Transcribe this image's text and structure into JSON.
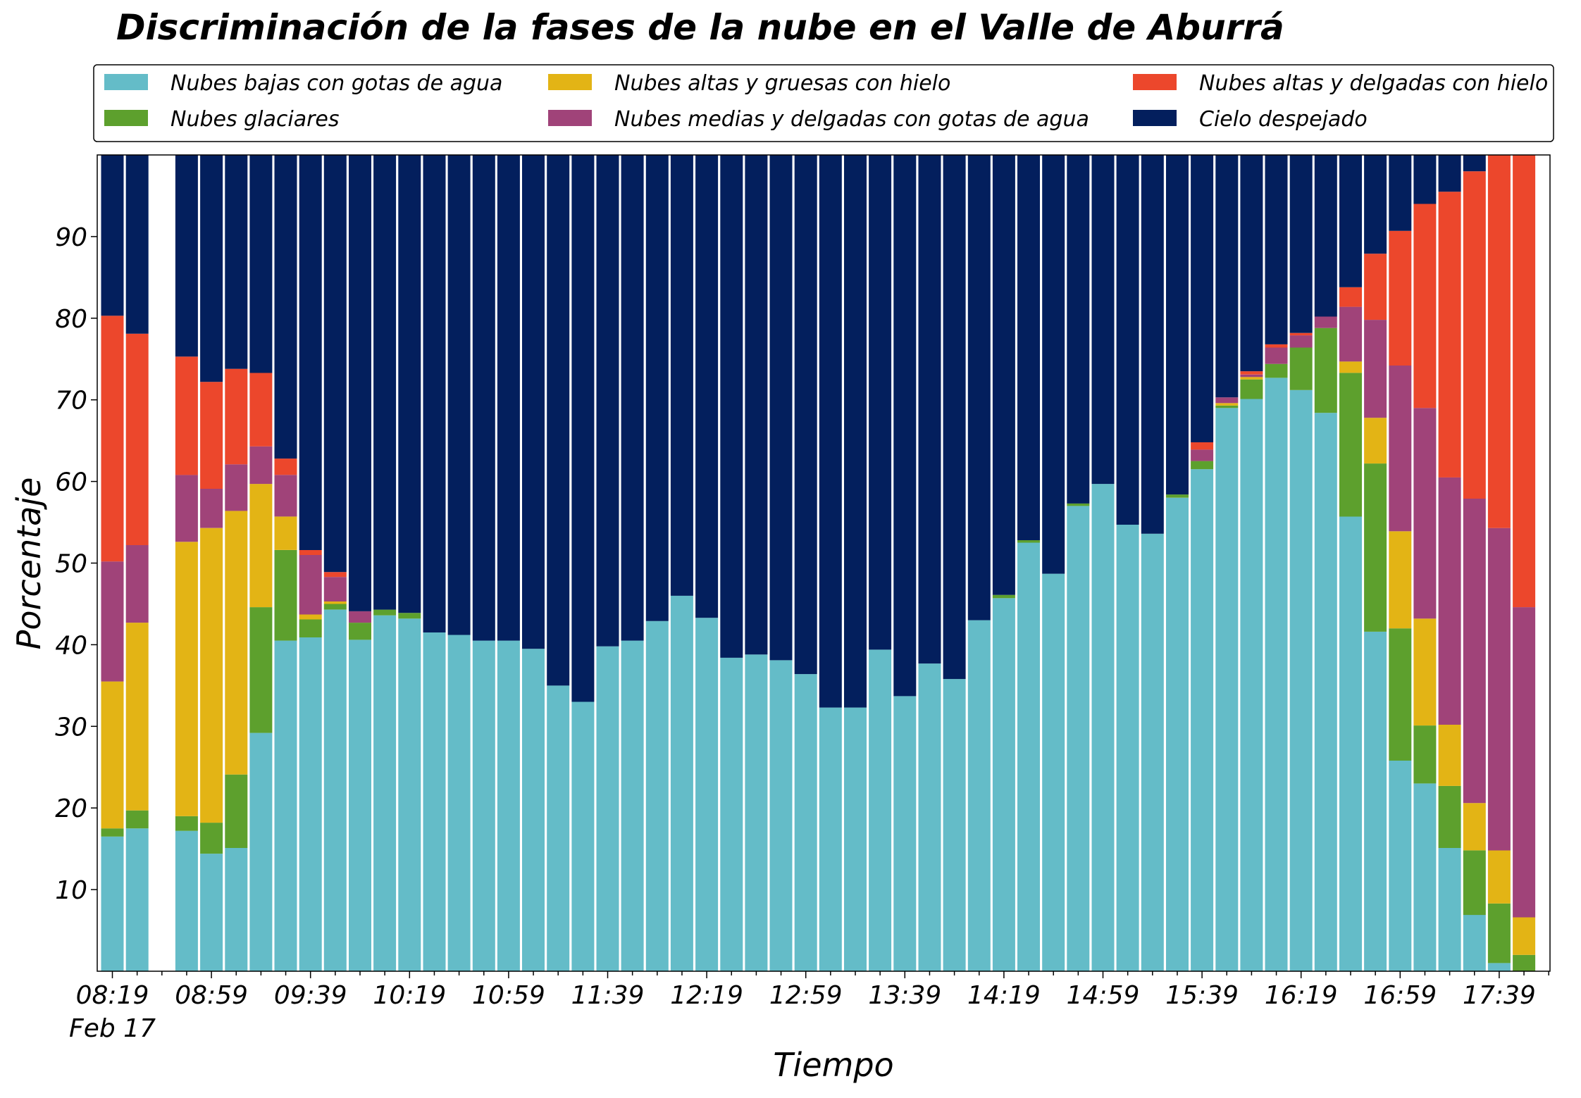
{
  "chart_data": {
    "type": "bar",
    "stacked": true,
    "title": "Discriminación de la fases de la nube en el Valle de Aburrá",
    "xlabel": "Tiempo",
    "ylabel": "Porcentaje",
    "ylim": [
      0,
      100
    ],
    "yticks": [
      "10",
      "20",
      "30",
      "40",
      "50",
      "60",
      "70",
      "80",
      "90"
    ],
    "xticks": [
      "08:19",
      "08:59",
      "09:39",
      "10:19",
      "10:59",
      "11:39",
      "12:19",
      "12:59",
      "13:39",
      "14:19",
      "14:59",
      "15:39",
      "16:19",
      "16:59",
      "17:39"
    ],
    "xtick_sublabel": "Feb 17",
    "grid": false,
    "legend_position": "top",
    "categories": [
      "08:19",
      "08:29",
      "08:39",
      "08:49",
      "08:59",
      "09:09",
      "09:19",
      "09:29",
      "09:39",
      "09:49",
      "09:59",
      "10:09",
      "10:19",
      "10:29",
      "10:39",
      "10:49",
      "10:59",
      "11:09",
      "11:19",
      "11:29",
      "11:39",
      "11:49",
      "11:59",
      "12:09",
      "12:19",
      "12:29",
      "12:39",
      "12:49",
      "12:59",
      "13:09",
      "13:19",
      "13:29",
      "13:39",
      "13:49",
      "13:59",
      "14:09",
      "14:19",
      "14:29",
      "14:39",
      "14:49",
      "14:59",
      "15:09",
      "15:19",
      "15:29",
      "15:39",
      "15:49",
      "15:59",
      "16:09",
      "16:19",
      "16:29",
      "16:39",
      "16:49",
      "16:59",
      "17:09",
      "17:19",
      "17:29",
      "17:39",
      "17:49",
      "17:59"
    ],
    "series": [
      {
        "name": "Nubes bajas con gotas de agua",
        "color": "#64BCC8",
        "values": [
          16.5,
          17.5,
          null,
          17.2,
          14.4,
          15.1,
          29.2,
          40.5,
          40.9,
          44.3,
          40.6,
          43.6,
          43.2,
          41.5,
          41.2,
          40.5,
          40.5,
          39.5,
          35.0,
          33.0,
          39.8,
          40.5,
          42.9,
          46.0,
          43.3,
          38.4,
          38.8,
          38.1,
          36.4,
          32.3,
          32.3,
          39.4,
          33.7,
          37.7,
          35.8,
          43.0,
          45.7,
          52.5,
          48.7,
          57.0,
          59.7,
          54.7,
          53.6,
          58.0,
          61.5,
          69.0,
          70.1,
          72.7,
          71.2,
          68.4,
          55.7,
          41.6,
          25.8,
          23.0,
          15.1,
          6.9,
          1.0,
          0,
          0
        ]
      },
      {
        "name": "Nubes glaciares",
        "color": "#5DA02D",
        "values": [
          1.0,
          2.2,
          null,
          1.8,
          3.8,
          9.0,
          15.4,
          11.1,
          2.2,
          0.7,
          2.1,
          0.7,
          0.7,
          0,
          0,
          0,
          0,
          0,
          0,
          0,
          0,
          0,
          0,
          0,
          0,
          0,
          0,
          0,
          0,
          0,
          0,
          0,
          0,
          0,
          0,
          0,
          0.4,
          0.3,
          0,
          0.3,
          0,
          0,
          0,
          0.4,
          1.0,
          0.3,
          2.4,
          1.7,
          5.2,
          10.4,
          17.6,
          20.6,
          16.2,
          7.1,
          7.6,
          7.9,
          7.3,
          2.0,
          0
        ]
      },
      {
        "name": "Nubes altas y gruesas con hielo",
        "color": "#E3B415",
        "values": [
          18.0,
          23.0,
          null,
          33.6,
          36.1,
          32.3,
          15.1,
          4.1,
          0.6,
          0.3,
          0,
          0,
          0,
          0,
          0,
          0,
          0,
          0,
          0,
          0,
          0,
          0,
          0,
          0,
          0,
          0,
          0,
          0,
          0,
          0,
          0,
          0,
          0,
          0,
          0,
          0,
          0,
          0,
          0,
          0,
          0,
          0,
          0,
          0,
          0,
          0.3,
          0.3,
          0,
          0,
          0,
          1.4,
          5.6,
          11.9,
          13.1,
          7.5,
          5.8,
          6.5,
          4.6,
          0
        ]
      },
      {
        "name": "Nubes medias y delgadas con gotas de agua",
        "color": "#A04379",
        "values": [
          14.7,
          9.5,
          null,
          8.2,
          4.8,
          5.7,
          4.6,
          5.1,
          7.3,
          3.0,
          1.4,
          0,
          0,
          0,
          0,
          0,
          0,
          0,
          0,
          0,
          0,
          0,
          0,
          0,
          0,
          0,
          0,
          0,
          0,
          0,
          0,
          0,
          0,
          0,
          0,
          0,
          0,
          0,
          0,
          0,
          0,
          0,
          0,
          0,
          1.4,
          0.7,
          0.3,
          2.0,
          1.5,
          1.4,
          6.7,
          12.0,
          20.3,
          25.8,
          30.3,
          37.3,
          39.5,
          38.0,
          0
        ]
      },
      {
        "name": "Nubes altas y delgadas con hielo",
        "color": "#EC472C",
        "values": [
          30.1,
          25.9,
          null,
          14.5,
          13.1,
          11.7,
          9.0,
          2.0,
          0.6,
          0.6,
          0,
          0,
          0,
          0,
          0,
          0,
          0,
          0,
          0,
          0,
          0,
          0,
          0,
          0,
          0,
          0,
          0,
          0,
          0,
          0,
          0,
          0,
          0,
          0,
          0,
          0,
          0,
          0,
          0,
          0,
          0,
          0,
          0,
          0,
          0.9,
          0,
          0.4,
          0.4,
          0.3,
          0,
          2.4,
          8.1,
          16.5,
          25.0,
          35.0,
          40.1,
          45.7,
          55.4,
          0
        ]
      },
      {
        "name": "Cielo despejado",
        "color": "#031F5D",
        "values": [
          19.7,
          21.9,
          null,
          24.7,
          27.8,
          26.2,
          26.7,
          37.2,
          48.4,
          51.1,
          55.9,
          55.7,
          56.1,
          58.5,
          58.8,
          59.5,
          59.5,
          60.5,
          65.0,
          67.0,
          60.2,
          59.5,
          57.1,
          54.0,
          56.7,
          61.6,
          61.2,
          61.9,
          63.6,
          67.7,
          67.7,
          60.6,
          66.3,
          62.3,
          64.2,
          57.0,
          53.9,
          47.2,
          51.3,
          42.7,
          40.3,
          45.3,
          46.4,
          41.6,
          35.2,
          29.7,
          26.5,
          23.2,
          21.8,
          19.8,
          16.2,
          12.1,
          9.3,
          6.0,
          4.5,
          2.0,
          0,
          0,
          0
        ]
      }
    ]
  }
}
